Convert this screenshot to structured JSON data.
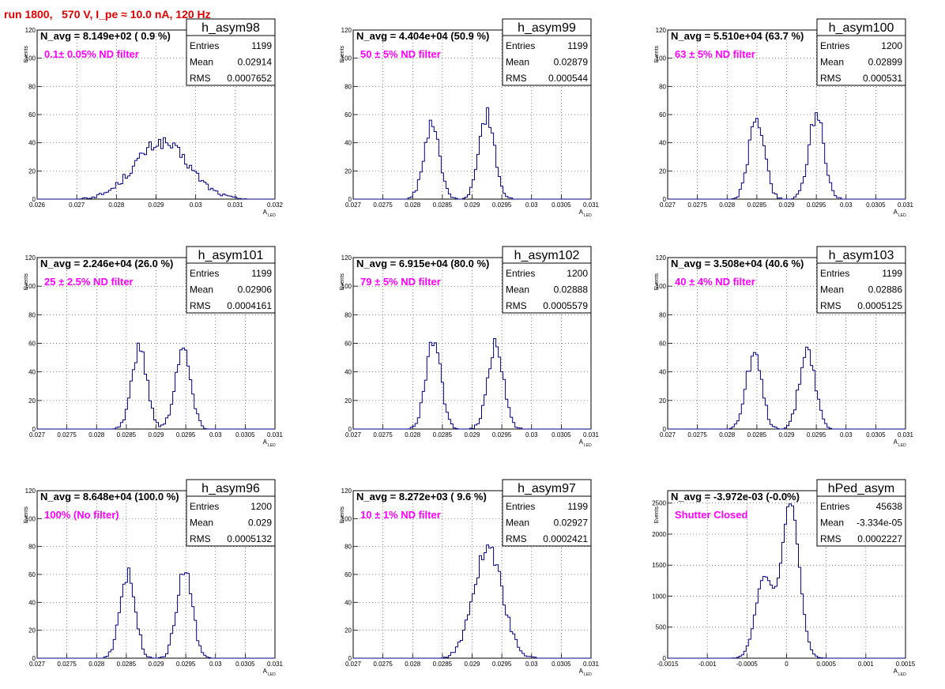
{
  "page_title": "run 1800,   570 V, I_pe ≈ 10.0 nA, 120 Hz",
  "colors": {
    "histogram": "#00008b",
    "filter_label": "#ff00ff",
    "title": "#e00000",
    "grid": "#555555"
  },
  "chart_data": [
    {
      "type": "histogram",
      "name": "h_asym98",
      "navg": "N_avg = 8.149e+02 ( 0.9 %)",
      "label": "0.1± 0.05% ND filter",
      "entries_label": "Entries",
      "entries": "1199",
      "mean_label": "Mean",
      "mean": "0.02914",
      "rms_label": "RMS",
      "rms": "0.0007652",
      "xlabel": "A",
      "xlabel_sub": "LED",
      "ylabel": "Events",
      "xlim": [
        0.026,
        0.032
      ],
      "ylim": [
        0,
        120
      ],
      "xticks": [
        "0.026",
        "0.027",
        "0.028",
        "0.029",
        "0.03",
        "0.031",
        "0.032"
      ],
      "yticks": [
        "0",
        "20",
        "40",
        "60",
        "80",
        "100",
        "120"
      ],
      "peaks": [
        {
          "mu": 0.02914,
          "sigma": 0.00068,
          "amp": 40
        }
      ]
    },
    {
      "type": "histogram",
      "name": "h_asym99",
      "navg": "N_avg = 4.404e+04 (50.9 %)",
      "label": "50 ± 5% ND filter",
      "entries_label": "Entries",
      "entries": "1199",
      "mean_label": "Mean",
      "mean": "0.02879",
      "rms_label": "RMS",
      "rms": "0.000544",
      "xlabel": "A",
      "xlabel_sub": "LED",
      "ylabel": "Events",
      "xlim": [
        0.027,
        0.031
      ],
      "ylim": [
        0,
        120
      ],
      "xticks": [
        "0.027",
        "0.0275",
        "0.028",
        "0.0285",
        "0.029",
        "0.0295",
        "0.03",
        "0.0305",
        "0.031"
      ],
      "yticks": [
        "0",
        "20",
        "40",
        "60",
        "80",
        "100",
        "120"
      ],
      "peaks": [
        {
          "mu": 0.02832,
          "sigma": 0.00013,
          "amp": 52
        },
        {
          "mu": 0.02925,
          "sigma": 0.00013,
          "amp": 60
        }
      ]
    },
    {
      "type": "histogram",
      "name": "h_asym100",
      "navg": "N_avg = 5.510e+04 (63.7 %)",
      "label": "63 ± 5% ND filter",
      "entries_label": "Entries",
      "entries": "1200",
      "mean_label": "Mean",
      "mean": "0.02899",
      "rms_label": "RMS",
      "rms": "0.000531",
      "xlabel": "A",
      "xlabel_sub": "LED",
      "ylabel": "Events",
      "xlim": [
        0.027,
        0.031
      ],
      "ylim": [
        0,
        120
      ],
      "xticks": [
        "0.027",
        "0.0275",
        "0.028",
        "0.0285",
        "0.029",
        "0.0295",
        "0.03",
        "0.0305",
        "0.031"
      ],
      "yticks": [
        "0",
        "20",
        "40",
        "60",
        "80",
        "100",
        "120"
      ],
      "peaks": [
        {
          "mu": 0.0285,
          "sigma": 0.00013,
          "amp": 58
        },
        {
          "mu": 0.0295,
          "sigma": 0.00013,
          "amp": 60
        }
      ]
    },
    {
      "type": "histogram",
      "name": "h_asym101",
      "navg": "N_avg = 2.246e+04 (26.0 %)",
      "label": "25 ± 2.5% ND filter",
      "entries_label": "Entries",
      "entries": "1199",
      "mean_label": "Mean",
      "mean": "0.02906",
      "rms_label": "RMS",
      "rms": "0.0004161",
      "xlabel": "A",
      "xlabel_sub": "LED",
      "ylabel": "Events",
      "xlim": [
        0.027,
        0.031
      ],
      "ylim": [
        0,
        120
      ],
      "xticks": [
        "0.027",
        "0.0275",
        "0.028",
        "0.0285",
        "0.029",
        "0.0295",
        "0.03",
        "0.0305",
        "0.031"
      ],
      "yticks": [
        "0",
        "20",
        "40",
        "60",
        "80",
        "100",
        "120"
      ],
      "peaks": [
        {
          "mu": 0.02872,
          "sigma": 0.00013,
          "amp": 56
        },
        {
          "mu": 0.02945,
          "sigma": 0.00013,
          "amp": 56
        }
      ]
    },
    {
      "type": "histogram",
      "name": "h_asym102",
      "navg": "N_avg = 6.915e+04 (80.0 %)",
      "label": "79 ± 5% ND filter",
      "entries_label": "Entries",
      "entries": "1200",
      "mean_label": "Mean",
      "mean": "0.02888",
      "rms_label": "RMS",
      "rms": "0.0005579",
      "xlabel": "A",
      "xlabel_sub": "LED",
      "ylabel": "Events",
      "xlim": [
        0.027,
        0.031
      ],
      "ylim": [
        0,
        120
      ],
      "xticks": [
        "0.027",
        "0.0275",
        "0.028",
        "0.0285",
        "0.029",
        "0.0295",
        "0.03",
        "0.0305",
        "0.031"
      ],
      "yticks": [
        "0",
        "20",
        "40",
        "60",
        "80",
        "100",
        "120"
      ],
      "peaks": [
        {
          "mu": 0.02835,
          "sigma": 0.00013,
          "amp": 60
        },
        {
          "mu": 0.0294,
          "sigma": 0.00013,
          "amp": 60
        }
      ]
    },
    {
      "type": "histogram",
      "name": "h_asym103",
      "navg": "N_avg = 3.508e+04 (40.6 %)",
      "label": "40 ± 4% ND filter",
      "entries_label": "Entries",
      "entries": "1199",
      "mean_label": "Mean",
      "mean": "0.02886",
      "rms_label": "RMS",
      "rms": "0.0005125",
      "xlabel": "A",
      "xlabel_sub": "LED",
      "ylabel": "Events",
      "xlim": [
        0.027,
        0.031
      ],
      "ylim": [
        0,
        120
      ],
      "xticks": [
        "0.027",
        "0.0275",
        "0.028",
        "0.0285",
        "0.029",
        "0.0295",
        "0.03",
        "0.0305",
        "0.031"
      ],
      "yticks": [
        "0",
        "20",
        "40",
        "60",
        "80",
        "100",
        "120"
      ],
      "peaks": [
        {
          "mu": 0.02845,
          "sigma": 0.00013,
          "amp": 52
        },
        {
          "mu": 0.02935,
          "sigma": 0.00013,
          "amp": 56
        }
      ]
    },
    {
      "type": "histogram",
      "name": "h_asym96",
      "navg": "N_avg = 8.648e+04 (100.0 %)",
      "label": "100% (No filter)",
      "entries_label": "Entries",
      "entries": "1200",
      "mean_label": "Mean",
      "mean": "0.029",
      "rms_label": "RMS",
      "rms": "0.0005132",
      "xlabel": "A",
      "xlabel_sub": "LED",
      "ylabel": "Events",
      "xlim": [
        0.027,
        0.031
      ],
      "ylim": [
        0,
        120
      ],
      "xticks": [
        "0.027",
        "0.0275",
        "0.028",
        "0.0285",
        "0.029",
        "0.0295",
        "0.03",
        "0.0305",
        "0.031"
      ],
      "yticks": [
        "0",
        "20",
        "40",
        "60",
        "80",
        "100",
        "120"
      ],
      "peaks": [
        {
          "mu": 0.02852,
          "sigma": 0.00013,
          "amp": 60
        },
        {
          "mu": 0.02948,
          "sigma": 0.00013,
          "amp": 63
        }
      ]
    },
    {
      "type": "histogram",
      "name": "h_asym97",
      "navg": "N_avg = 8.272e+03 ( 9.6 %)",
      "label": "10 ± 1% ND filter",
      "entries_label": "Entries",
      "entries": "1199",
      "mean_label": "Mean",
      "mean": "0.02927",
      "rms_label": "RMS",
      "rms": "0.0002421",
      "xlabel": "A",
      "xlabel_sub": "LED",
      "ylabel": "Events",
      "xlim": [
        0.027,
        0.031
      ],
      "ylim": [
        0,
        120
      ],
      "xticks": [
        "0.027",
        "0.0275",
        "0.028",
        "0.0285",
        "0.029",
        "0.0295",
        "0.03",
        "0.0305",
        "0.031"
      ],
      "yticks": [
        "0",
        "20",
        "40",
        "60",
        "80",
        "100",
        "120"
      ],
      "peaks": [
        {
          "mu": 0.02927,
          "sigma": 0.00024,
          "amp": 80
        }
      ]
    },
    {
      "type": "histogram",
      "name": "hPed_asym",
      "navg": "N_avg = -3.972e-03 (-0.0%)",
      "label": "Shutter Closed",
      "entries_label": "Entries",
      "entries": "45638",
      "mean_label": "Mean",
      "mean": "-3.334e-05",
      "rms_label": "RMS",
      "rms": "0.0002227",
      "xlabel": "A",
      "xlabel_sub": "LED",
      "ylabel": "Events",
      "xlim": [
        -0.0015,
        0.0015
      ],
      "ylim": [
        0,
        2700
      ],
      "xticks": [
        "-0.0015",
        "-0.001",
        "-0.0005",
        "0",
        "0.0005",
        "0.001",
        "0.0015"
      ],
      "yticks": [
        "0",
        "500",
        "1000",
        "1500",
        "2000",
        "2500"
      ],
      "peaks": [
        {
          "mu": -0.00028,
          "sigma": 0.00011,
          "amp": 1300
        },
        {
          "mu": 5e-05,
          "sigma": 0.00011,
          "amp": 2500
        }
      ]
    }
  ]
}
